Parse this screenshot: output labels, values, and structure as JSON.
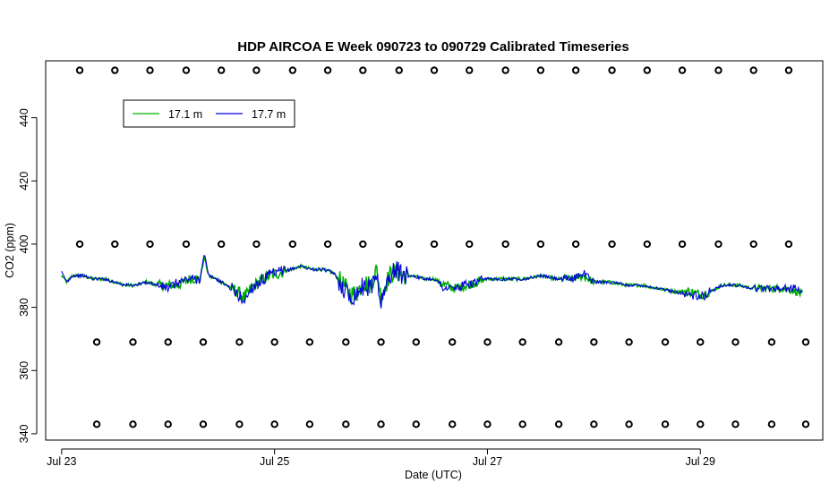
{
  "chart_data": {
    "type": "line",
    "title": "HDP AIRCOA E  Week 090723 to 090729  Calibrated Timeseries",
    "xlabel": "Date (UTC)",
    "ylabel": "CO2 (ppm)",
    "x_unit": "days",
    "xlim": [
      "Jul 23",
      "Jul 30"
    ],
    "ylim": [
      338,
      458
    ],
    "x_ticks": [
      {
        "day": 23,
        "label": "Jul 23"
      },
      {
        "day": 25,
        "label": "Jul 25"
      },
      {
        "day": 27,
        "label": "Jul 27"
      },
      {
        "day": 29,
        "label": "Jul 29"
      }
    ],
    "y_ticks": [
      340,
      360,
      380,
      400,
      420,
      440
    ],
    "legend": {
      "position": "top-left",
      "entries": [
        {
          "name": "17.1 m",
          "color": "#00b000"
        },
        {
          "name": "17.7 m",
          "color": "#0000dd"
        }
      ]
    },
    "series": [
      {
        "name": "17.1 m",
        "color": "#00b000",
        "x": [
          23.0,
          23.05,
          23.1,
          23.2,
          23.3,
          23.4,
          23.5,
          23.6,
          23.7,
          23.8,
          23.9,
          24.0,
          24.1,
          24.2,
          24.3,
          24.34,
          24.38,
          24.45,
          24.55,
          24.65,
          24.72,
          24.78,
          24.85,
          24.95,
          25.05,
          25.15,
          25.25,
          25.35,
          25.45,
          25.55,
          25.65,
          25.72,
          25.78,
          25.84,
          25.9,
          25.96,
          26.0,
          26.05,
          26.1,
          26.15,
          26.2,
          26.3,
          26.4,
          26.5,
          26.6,
          26.7,
          26.8,
          26.9,
          27.0,
          27.1,
          27.2,
          27.35,
          27.5,
          27.65,
          27.8,
          27.9,
          28.0,
          28.15,
          28.3,
          28.45,
          28.6,
          28.75,
          28.9,
          29.0,
          29.1,
          29.2,
          29.35,
          29.5,
          29.65,
          29.8,
          29.9,
          29.96
        ],
        "values": [
          390,
          388,
          390,
          390,
          389,
          389,
          388,
          387,
          387,
          388,
          387,
          387,
          387,
          389,
          389,
          396,
          390,
          389,
          387,
          385,
          383,
          386,
          388,
          390,
          391,
          392,
          393,
          392,
          392,
          391,
          387,
          384,
          385,
          388,
          387,
          392,
          383,
          388,
          391,
          391,
          390,
          390,
          389,
          389,
          387,
          386,
          387,
          388,
          389,
          389,
          389,
          389,
          390,
          389,
          389,
          390,
          388,
          388,
          387,
          387,
          386,
          385,
          385,
          384,
          385,
          387,
          387,
          386,
          386,
          386,
          385,
          384
        ]
      },
      {
        "name": "17.7 m",
        "color": "#0000dd",
        "x": [
          23.0,
          23.05,
          23.1,
          23.2,
          23.3,
          23.4,
          23.5,
          23.6,
          23.7,
          23.8,
          23.9,
          24.0,
          24.1,
          24.2,
          24.3,
          24.34,
          24.38,
          24.45,
          24.55,
          24.65,
          24.72,
          24.78,
          24.85,
          24.95,
          25.05,
          25.15,
          25.25,
          25.35,
          25.45,
          25.55,
          25.65,
          25.72,
          25.78,
          25.84,
          25.9,
          25.96,
          26.0,
          26.05,
          26.1,
          26.15,
          26.2,
          26.3,
          26.4,
          26.5,
          26.6,
          26.7,
          26.8,
          26.9,
          27.0,
          27.1,
          27.2,
          27.35,
          27.5,
          27.65,
          27.8,
          27.9,
          28.0,
          28.15,
          28.3,
          28.45,
          28.6,
          28.75,
          28.9,
          29.0,
          29.1,
          29.2,
          29.35,
          29.5,
          29.65,
          29.8,
          29.9,
          29.96
        ],
        "values": [
          391,
          388,
          390,
          390,
          389,
          389,
          388,
          387,
          387,
          388,
          387,
          386,
          388,
          389,
          389,
          397,
          390,
          389,
          387,
          384,
          382,
          386,
          388,
          390,
          391,
          392,
          393,
          392,
          392,
          391,
          386,
          383,
          385,
          387,
          386,
          391,
          381,
          387,
          391,
          392,
          390,
          390,
          389,
          389,
          386,
          386,
          387,
          388,
          389,
          389,
          389,
          389,
          390,
          389,
          389,
          391,
          388,
          388,
          387,
          387,
          386,
          385,
          384,
          383,
          385,
          387,
          387,
          386,
          386,
          386,
          386,
          385
        ]
      }
    ],
    "calibration_points": {
      "levels": [
        455,
        400,
        369,
        343
      ],
      "level_1_x": [
        23.17,
        23.5,
        23.83,
        24.17,
        24.5,
        24.83,
        25.17,
        25.5,
        25.83,
        26.17,
        26.5,
        26.83,
        27.17,
        27.5,
        27.83,
        28.17,
        28.5,
        28.83,
        29.17,
        29.5,
        29.83
      ],
      "level_2_x": [
        23.17,
        23.5,
        23.83,
        24.17,
        24.5,
        24.83,
        25.17,
        25.5,
        25.83,
        26.17,
        26.5,
        26.83,
        27.17,
        27.5,
        27.83,
        28.17,
        28.5,
        28.83,
        29.17,
        29.5,
        29.83
      ],
      "level_3_x": [
        23.33,
        23.67,
        24.0,
        24.33,
        24.67,
        25.0,
        25.33,
        25.67,
        26.0,
        26.33,
        26.67,
        27.0,
        27.33,
        27.67,
        28.0,
        28.33,
        28.67,
        29.0,
        29.33,
        29.67,
        29.99
      ],
      "level_4_x": [
        23.33,
        23.67,
        24.0,
        24.33,
        24.67,
        25.0,
        25.33,
        25.67,
        26.0,
        26.33,
        26.67,
        27.0,
        27.33,
        27.67,
        28.0,
        28.33,
        28.67,
        29.0,
        29.33,
        29.67,
        29.99
      ]
    }
  }
}
